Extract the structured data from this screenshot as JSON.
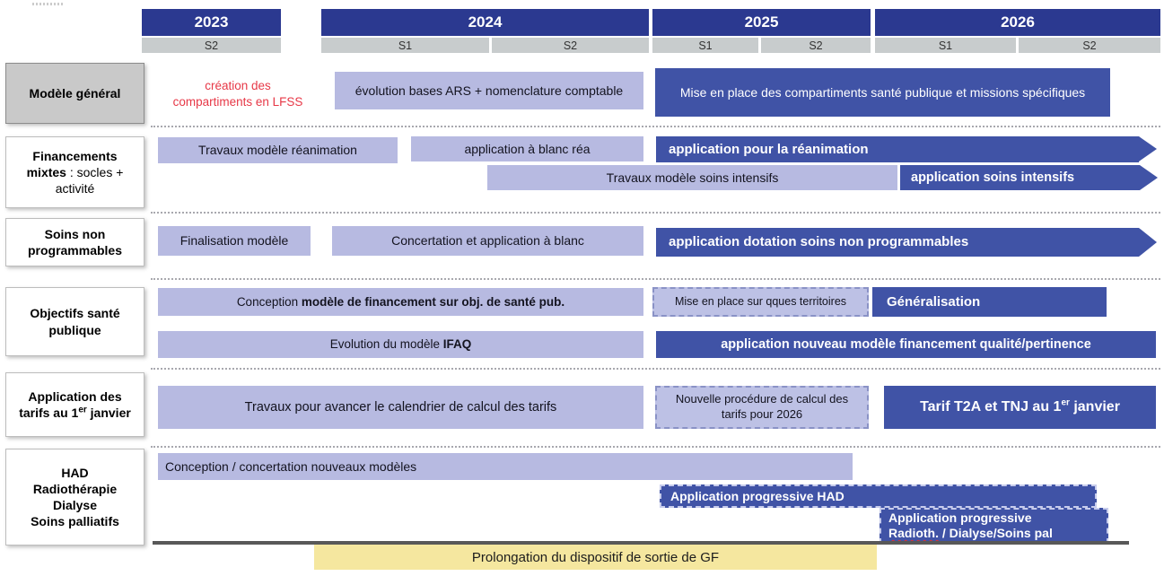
{
  "colors": {
    "header_navy": "#2B3990",
    "bar_dark_blue": "#4053A6",
    "bar_light_purple": "#B7BAE1",
    "semester_grey": "#C8CCCD",
    "label_grey": "#C9C9C9",
    "yellow_banner": "#F5E79F",
    "red_note": "#E73847",
    "axis_grey": "#585858"
  },
  "header": {
    "years": [
      "2023",
      "2024",
      "2025",
      "2026"
    ],
    "semesters": [
      "S2",
      "S1",
      "S2",
      "S1",
      "S2",
      "S1",
      "S2"
    ]
  },
  "rows": [
    {
      "label": "Modèle général",
      "note": "création des compartiments en LFSS",
      "bars": [
        {
          "text": "évolution bases ARS + nomenclature comptable"
        },
        {
          "text": "Mise en place des compartiments  santé publique  et missions spécifiques"
        }
      ]
    },
    {
      "label_bold": "Financements mixtes",
      "label_rest": " : socles + activité",
      "bars": [
        {
          "text": "Travaux modèle réanimation"
        },
        {
          "text": "application  à blanc réa"
        },
        {
          "text": "application pour la réanimation"
        },
        {
          "text": "Travaux modèle soins intensifs"
        },
        {
          "text": "application soins intensifs"
        }
      ]
    },
    {
      "label": "Soins non programmables",
      "bars": [
        {
          "text": "Finalisation modèle"
        },
        {
          "text": "Concertation et application  à blanc"
        },
        {
          "text": "application dotation soins non programmables"
        }
      ]
    },
    {
      "label": "Objectifs santé publique",
      "bars": [
        {
          "prefix": "Conception ",
          "bold": "modèle de financement  sur obj. de santé pub."
        },
        {
          "text": "Mise en place sur qques territoires"
        },
        {
          "text": "Généralisation"
        },
        {
          "prefix": "Evolution du modèle ",
          "bold": "IFAQ"
        },
        {
          "text": "application nouveau modèle financement qualité/pertinence"
        }
      ]
    },
    {
      "label_pre": "Application des tarifs au 1",
      "label_sup": "er",
      "label_post": " janvier",
      "bars": [
        {
          "text": "Travaux pour avancer le calendrier de calcul des tarifs"
        },
        {
          "text": "Nouvelle procédure de calcul des tarifs pour 2026"
        },
        {
          "pre": "Tarif T2A et TNJ au 1",
          "sup": "er",
          "post": " janvier"
        }
      ]
    },
    {
      "label_lines": [
        "HAD",
        "Radiothérapie",
        "Dialyse",
        "Soins palliatifs"
      ],
      "bars": [
        {
          "text": "Conception / concertation nouveaux modèles"
        },
        {
          "text": "Application progressive HAD"
        },
        {
          "line1": "Application progressive",
          "line2_a": "Radioth.",
          "line2_b": " / Dialyse/Soins pal"
        }
      ]
    }
  ],
  "footer": {
    "banner": "Prolongation du dispositif de sortie de GF"
  }
}
